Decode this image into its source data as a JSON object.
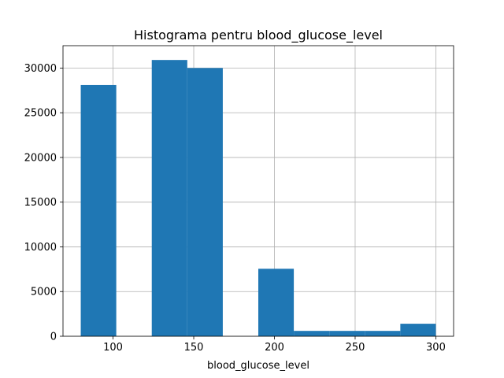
{
  "chart_data": {
    "type": "bar",
    "title": "Histograma pentru blood_glucose_level",
    "xlabel": "blood_glucose_level",
    "ylabel": "",
    "bar_color": "#1f77b4",
    "grid": true,
    "xlim": [
      69,
      311
    ],
    "ylim": [
      0,
      32500
    ],
    "x_ticks": [
      100,
      150,
      200,
      250,
      300
    ],
    "y_ticks": [
      0,
      5000,
      10000,
      15000,
      20000,
      25000,
      30000
    ],
    "bins": [
      {
        "start": 80,
        "end": 102,
        "count": 28100
      },
      {
        "start": 102,
        "end": 124,
        "count": 0
      },
      {
        "start": 124,
        "end": 146,
        "count": 30900
      },
      {
        "start": 146,
        "end": 168,
        "count": 30000
      },
      {
        "start": 168,
        "end": 190,
        "count": 0
      },
      {
        "start": 190,
        "end": 212,
        "count": 7550
      },
      {
        "start": 212,
        "end": 234,
        "count": 600
      },
      {
        "start": 234,
        "end": 256,
        "count": 600
      },
      {
        "start": 256,
        "end": 278,
        "count": 600
      },
      {
        "start": 278,
        "end": 300,
        "count": 1400
      }
    ]
  }
}
